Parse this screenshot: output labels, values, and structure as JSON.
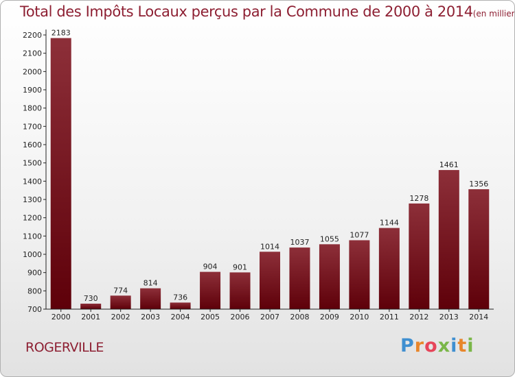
{
  "title": {
    "main": "Total des Impôts Locaux perçus par la Commune de 2000 à 2014",
    "unit": "(en milliers d'€)"
  },
  "commune": "ROGERVILLE",
  "logo": {
    "text": "Proxiti",
    "letter_colors": [
      "#3f8fd0",
      "#e8862b",
      "#e6455a",
      "#7ab648",
      "#3f8fd0",
      "#e8862b",
      "#7ab648"
    ]
  },
  "colors": {
    "bar_top": "#8d2f39",
    "bar_bottom": "#5e0009",
    "title": "#8d1f32"
  },
  "chart_data": {
    "type": "bar",
    "categories": [
      "2000",
      "2001",
      "2002",
      "2003",
      "2004",
      "2005",
      "2006",
      "2007",
      "2008",
      "2009",
      "2010",
      "2011",
      "2012",
      "2013",
      "2014"
    ],
    "values": [
      2183,
      730,
      774,
      814,
      736,
      904,
      901,
      1014,
      1037,
      1055,
      1077,
      1144,
      1278,
      1461,
      1356
    ],
    "ylim": [
      700,
      2200
    ],
    "yticks": [
      700,
      800,
      900,
      1000,
      1100,
      1200,
      1300,
      1400,
      1500,
      1600,
      1700,
      1800,
      1900,
      2000,
      2100,
      2200
    ],
    "xlabel": "",
    "ylabel": "",
    "grid": false,
    "data_labels": true
  }
}
